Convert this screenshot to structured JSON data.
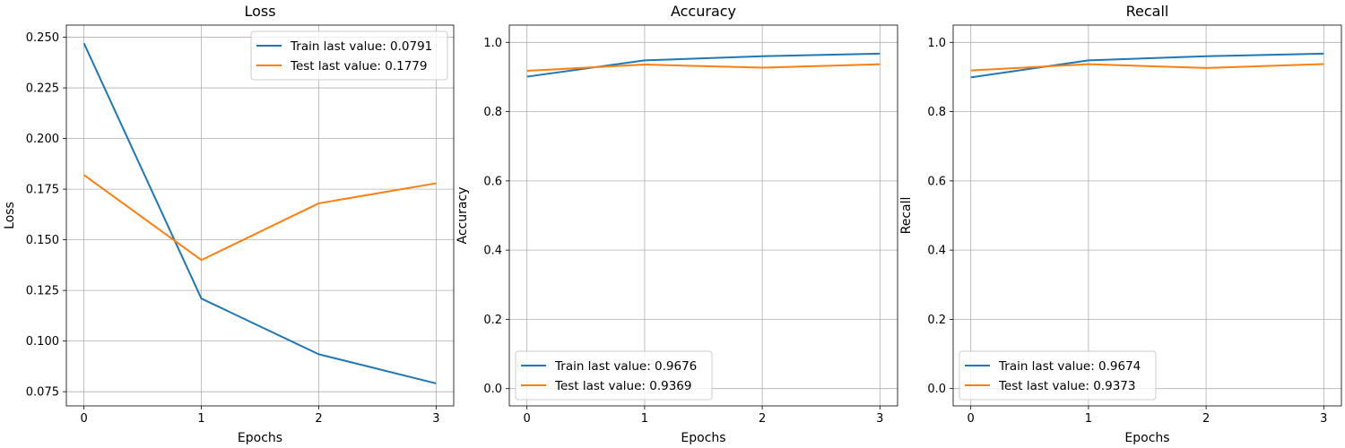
{
  "chart_data": [
    {
      "type": "line",
      "title": "Loss",
      "xlabel": "Epochs",
      "ylabel": "Loss",
      "x": [
        0,
        1,
        2,
        3
      ],
      "xticks": [
        "0",
        "1",
        "2",
        "3"
      ],
      "xlim": [
        -0.15,
        3.15
      ],
      "ylim": [
        0.068,
        0.256
      ],
      "yticks": [
        "0.075",
        "0.100",
        "0.125",
        "0.150",
        "0.175",
        "0.200",
        "0.225",
        "0.250"
      ],
      "grid": true,
      "legend_position": "upper right",
      "series": [
        {
          "name": "Train last value: 0.0791",
          "color": "#1f77b4",
          "values": [
            0.247,
            0.121,
            0.0935,
            0.0791
          ]
        },
        {
          "name": "Test last value: 0.1779",
          "color": "#ff7f0e",
          "values": [
            0.182,
            0.14,
            0.168,
            0.1779
          ]
        }
      ]
    },
    {
      "type": "line",
      "title": "Accuracy",
      "xlabel": "Epochs",
      "ylabel": "Accuracy",
      "x": [
        0,
        1,
        2,
        3
      ],
      "xticks": [
        "0",
        "1",
        "2",
        "3"
      ],
      "xlim": [
        -0.15,
        3.15
      ],
      "ylim": [
        -0.05,
        1.05
      ],
      "yticks": [
        "0.0",
        "0.2",
        "0.4",
        "0.6",
        "0.8",
        "1.0"
      ],
      "grid": true,
      "legend_position": "lower left",
      "series": [
        {
          "name": "Train last value: 0.9676",
          "color": "#1f77b4",
          "values": [
            0.901,
            0.948,
            0.96,
            0.9676
          ]
        },
        {
          "name": "Test last value: 0.9369",
          "color": "#ff7f0e",
          "values": [
            0.918,
            0.936,
            0.927,
            0.9369
          ]
        }
      ]
    },
    {
      "type": "line",
      "title": "Recall",
      "xlabel": "Epochs",
      "ylabel": "Recall",
      "x": [
        0,
        1,
        2,
        3
      ],
      "xticks": [
        "0",
        "1",
        "2",
        "3"
      ],
      "xlim": [
        -0.15,
        3.15
      ],
      "ylim": [
        -0.05,
        1.05
      ],
      "yticks": [
        "0.0",
        "0.2",
        "0.4",
        "0.6",
        "0.8",
        "1.0"
      ],
      "grid": true,
      "legend_position": "lower left",
      "series": [
        {
          "name": "Train last value: 0.9674",
          "color": "#1f77b4",
          "values": [
            0.899,
            0.948,
            0.96,
            0.9674
          ]
        },
        {
          "name": "Test last value: 0.9373",
          "color": "#ff7f0e",
          "values": [
            0.919,
            0.937,
            0.926,
            0.9373
          ]
        }
      ]
    }
  ]
}
